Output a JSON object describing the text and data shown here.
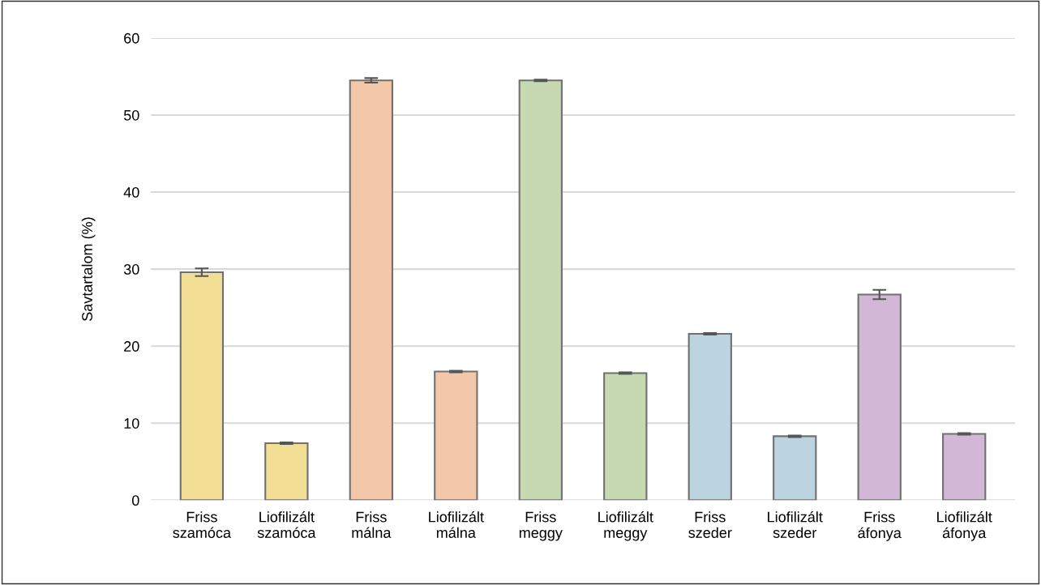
{
  "chart_data": {
    "type": "bar",
    "ylabel": "Savtartalom (%)",
    "categories": [
      "Friss\nszamóca",
      "Liofilizált\nszamóca",
      "Friss\nmálna",
      "Liofilizált\nmálna",
      "Friss\nmeggy",
      "Liofilizált\nmeggy",
      "Friss\nszeder",
      "Liofilizált\nszeder",
      "Friss\náfonya",
      "Liofilizált\náfonya"
    ],
    "values": [
      29.6,
      7.4,
      54.5,
      16.7,
      54.5,
      16.5,
      21.6,
      8.3,
      26.7,
      8.6
    ],
    "errors": [
      0.5,
      0.1,
      0.3,
      0.1,
      0.1,
      0.1,
      0.1,
      0.1,
      0.6,
      0.1
    ],
    "colors": [
      "#f2de94",
      "#f2de94",
      "#f2c8a9",
      "#f2c8a9",
      "#c6d9b1",
      "#c6d9b1",
      "#bcd4e0",
      "#bcd4e0",
      "#d2b8d6",
      "#d2b8d6"
    ],
    "ylim": [
      0,
      60
    ],
    "yticks": [
      0,
      10,
      20,
      30,
      40,
      50,
      60
    ],
    "grid": "y",
    "legend": false
  }
}
